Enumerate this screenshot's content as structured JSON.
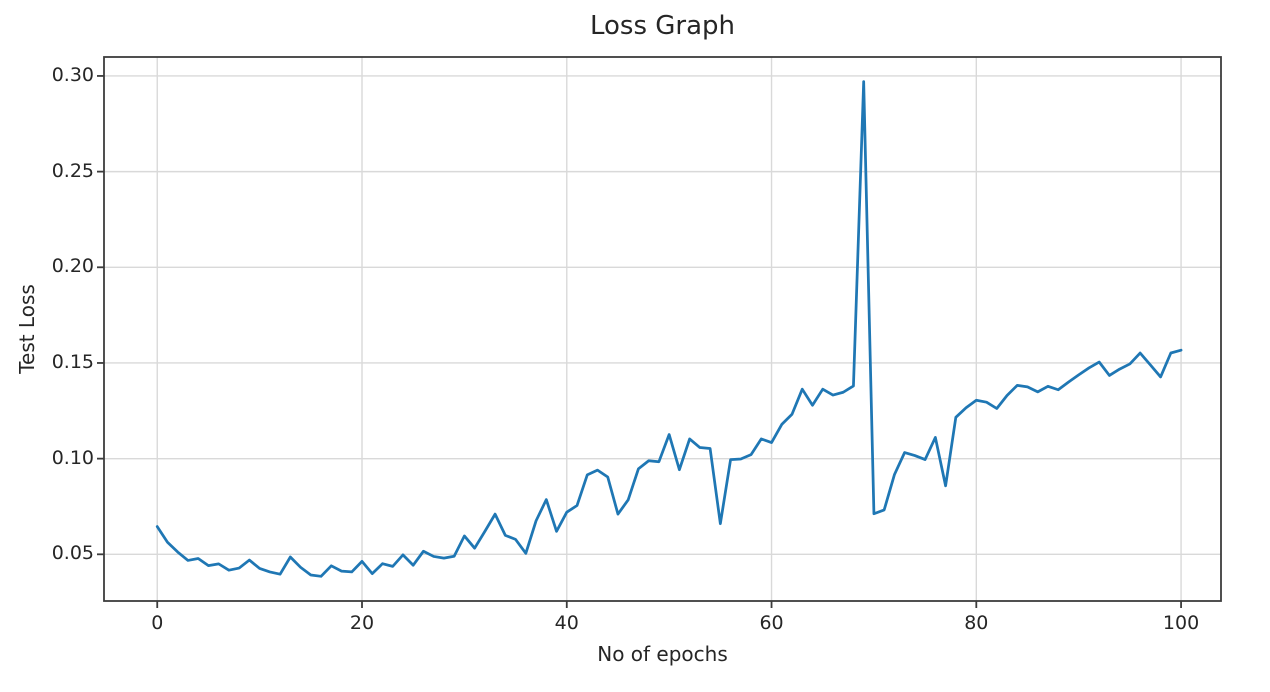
{
  "chart_data": {
    "type": "line",
    "title": "Loss Graph",
    "xlabel": "No of epochs",
    "ylabel": "Test Loss",
    "grid": true,
    "legend": "none",
    "background": "#ffffff",
    "xlim": [
      -5.2,
      103.9
    ],
    "ylim": [
      0.0256,
      0.3099
    ],
    "xticks": {
      "values": [
        0,
        20,
        40,
        60,
        80,
        100
      ],
      "labels": [
        "0",
        "20",
        "40",
        "60",
        "80",
        "100"
      ]
    },
    "yticks": {
      "values": [
        0.05,
        0.1,
        0.15,
        0.2,
        0.25,
        0.3
      ],
      "labels": [
        "0.05",
        "0.10",
        "0.15",
        "0.20",
        "0.25",
        "0.30"
      ]
    },
    "x_start": 0,
    "x_step": 1,
    "series": [
      {
        "name": "test loss",
        "color": "#1f77b4",
        "values": [
          0.0645,
          0.0563,
          0.0512,
          0.0468,
          0.0478,
          0.0441,
          0.045,
          0.0417,
          0.0428,
          0.047,
          0.0426,
          0.0408,
          0.0396,
          0.0486,
          0.0432,
          0.0392,
          0.0385,
          0.044,
          0.0412,
          0.0408,
          0.0463,
          0.0399,
          0.0451,
          0.0437,
          0.0497,
          0.0443,
          0.0516,
          0.0489,
          0.048,
          0.049,
          0.0596,
          0.0532,
          0.062,
          0.071,
          0.0599,
          0.0578,
          0.0505,
          0.0675,
          0.0786,
          0.062,
          0.072,
          0.0755,
          0.0915,
          0.094,
          0.0904,
          0.071,
          0.0785,
          0.0947,
          0.0989,
          0.0984,
          0.1126,
          0.0942,
          0.1103,
          0.1058,
          0.1053,
          0.066,
          0.0995,
          0.0998,
          0.1021,
          0.1103,
          0.1084,
          0.1179,
          0.1232,
          0.1363,
          0.1279,
          0.1363,
          0.1332,
          0.1347,
          0.138,
          0.297,
          0.0712,
          0.0732,
          0.0916,
          0.1032,
          0.1016,
          0.0995,
          0.1111,
          0.0858,
          0.1216,
          0.1266,
          0.1305,
          0.1295,
          0.1262,
          0.133,
          0.1383,
          0.1375,
          0.1349,
          0.1378,
          0.136,
          0.14,
          0.1438,
          0.1474,
          0.1505,
          0.1435,
          0.1468,
          0.1495,
          0.1552,
          0.149,
          0.1427,
          0.1552,
          0.1567
        ]
      }
    ]
  }
}
